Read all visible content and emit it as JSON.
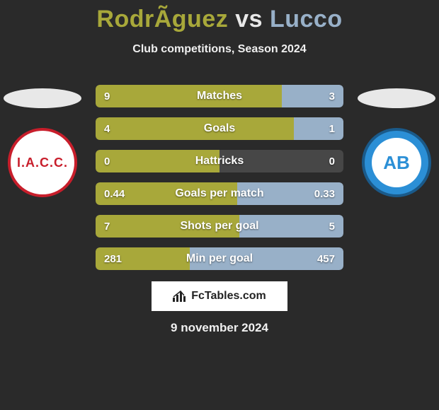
{
  "title": {
    "player1": "RodrÃ­guez",
    "vs": "vs",
    "player2": "Lucco"
  },
  "subtitle": "Club competitions, Season 2024",
  "colors": {
    "player1_accent": "#a8a83a",
    "player2_accent": "#98b0c8",
    "bar_p1_fill": "#a8a83a",
    "bar_p2_fill": "#98b0c8",
    "bar_bg": "#474747",
    "page_bg": "#2a2a2a",
    "text": "#ffffff"
  },
  "left_club": {
    "abbrev": "I.A.C.C."
  },
  "right_club": {
    "abbrev": "AB"
  },
  "bars": [
    {
      "label": "Matches",
      "left_val": "9",
      "right_val": "3",
      "left_pct": 75,
      "right_pct": 25
    },
    {
      "label": "Goals",
      "left_val": "4",
      "right_val": "1",
      "left_pct": 80,
      "right_pct": 20
    },
    {
      "label": "Hattricks",
      "left_val": "0",
      "right_val": "0",
      "left_pct": 50,
      "right_pct": 0
    },
    {
      "label": "Goals per match",
      "left_val": "0.44",
      "right_val": "0.33",
      "left_pct": 57,
      "right_pct": 43
    },
    {
      "label": "Shots per goal",
      "left_val": "7",
      "right_val": "5",
      "left_pct": 58,
      "right_pct": 42
    },
    {
      "label": "Min per goal",
      "left_val": "281",
      "right_val": "457",
      "left_pct": 38,
      "right_pct": 62
    }
  ],
  "watermark": "FcTables.com",
  "date": "9 november 2024"
}
